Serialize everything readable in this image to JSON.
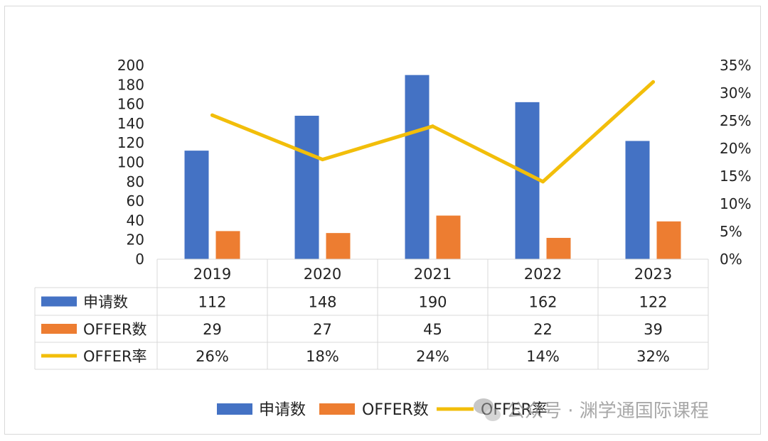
{
  "chart_data": {
    "type": "bar",
    "categories": [
      "2019",
      "2020",
      "2021",
      "2022",
      "2023"
    ],
    "series": [
      {
        "name": "申请数",
        "type": "bar",
        "axis": "left",
        "color": "#4472C4",
        "values": [
          112,
          148,
          190,
          162,
          122
        ]
      },
      {
        "name": "OFFER数",
        "type": "bar",
        "axis": "left",
        "color": "#ED7D31",
        "values": [
          29,
          27,
          45,
          22,
          39
        ]
      },
      {
        "name": "OFFER率",
        "type": "line",
        "axis": "right",
        "color": "#F2BE0A",
        "values": [
          0.26,
          0.18,
          0.24,
          0.14,
          0.32
        ]
      }
    ],
    "table_rows": [
      [
        "112",
        "148",
        "190",
        "162",
        "122"
      ],
      [
        "29",
        "27",
        "45",
        "22",
        "39"
      ],
      [
        "26%",
        "18%",
        "24%",
        "14%",
        "32%"
      ]
    ],
    "left_axis": {
      "ylim": [
        0,
        200
      ],
      "ticks": [
        "0",
        "20",
        "40",
        "60",
        "80",
        "100",
        "120",
        "140",
        "160",
        "180",
        "200"
      ]
    },
    "right_axis": {
      "ylim": [
        0,
        0.35
      ],
      "ticks": [
        "0%",
        "5%",
        "10%",
        "15%",
        "20%",
        "25%",
        "30%",
        "35%"
      ]
    },
    "legend_position": "bottom",
    "grid": false,
    "data_table": true
  },
  "watermark": {
    "text": "公众号 · 渊学通国际课程",
    "icon": "wechat-icon"
  }
}
